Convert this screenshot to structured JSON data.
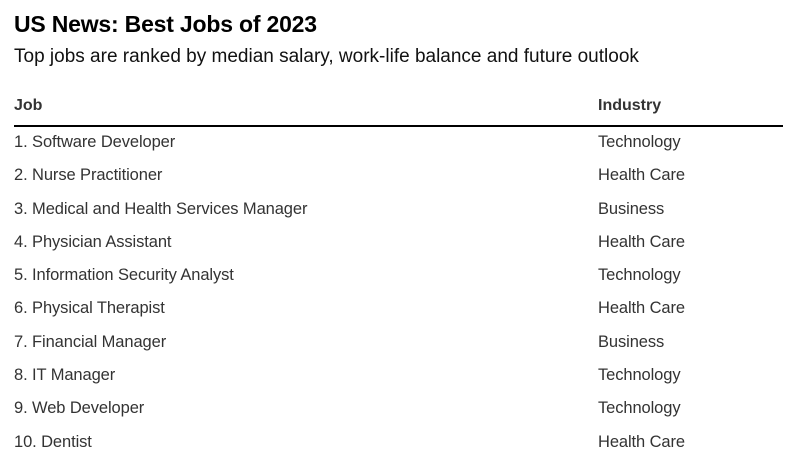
{
  "chart_data": {
    "type": "table",
    "title": "US News: Best Jobs of 2023",
    "subtitle": "Top jobs are ranked by median salary, work-life balance and future outlook",
    "columns": [
      "Job",
      "Industry"
    ],
    "rows": [
      [
        "1. Software Developer",
        "Technology"
      ],
      [
        "2. Nurse Practitioner",
        "Health Care"
      ],
      [
        "3. Medical and Health Services Manager",
        "Business"
      ],
      [
        "4. Physician Assistant",
        "Health Care"
      ],
      [
        "5. Information Security Analyst",
        "Technology"
      ],
      [
        "6. Physical Therapist",
        "Health Care"
      ],
      [
        "7. Financial Manager",
        "Business"
      ],
      [
        "8. IT Manager",
        "Technology"
      ],
      [
        "9. Web Developer",
        "Technology"
      ],
      [
        "10. Dentist",
        "Health Care"
      ]
    ]
  }
}
